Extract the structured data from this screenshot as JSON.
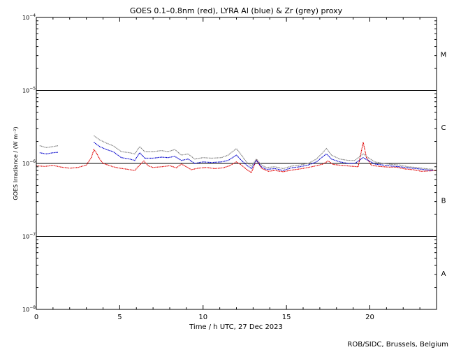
{
  "chart_data": {
    "type": "line",
    "title": "GOES 0.1–0.8nm (red), LYRA Al (blue) & Zr (grey) proxy",
    "xlabel": "Time / h UTC, 27 Dec 2023",
    "ylabel": "GOES Irradiance / (W m⁻²)",
    "xlim": [
      0,
      24
    ],
    "ylim": [
      1e-08,
      0.0001
    ],
    "yscale": "log",
    "x_ticks": [
      0,
      5,
      10,
      15,
      20
    ],
    "x_tick_labels": [
      "0",
      "5",
      "10",
      "15",
      "20"
    ],
    "y_tick_base": "10",
    "y_ticks": [
      {
        "value": 1e-08,
        "exp": "−8"
      },
      {
        "value": 1e-07,
        "exp": "−7"
      },
      {
        "value": 1e-06,
        "exp": "−6"
      },
      {
        "value": 1e-05,
        "exp": "−5"
      },
      {
        "value": 0.0001,
        "exp": "−4"
      }
    ],
    "flare_class_lines": [
      1e-07,
      1e-06,
      1e-05
    ],
    "flare_classes": [
      {
        "label": "A",
        "value": 3.16e-08
      },
      {
        "label": "B",
        "value": 3.16e-07
      },
      {
        "label": "C",
        "value": 3.16e-06
      },
      {
        "label": "M",
        "value": 3.16e-05
      }
    ],
    "series": [
      {
        "name": "GOES 0.1–0.8nm",
        "color": "#e00000",
        "points": [
          [
            0.0,
            9.3e-07
          ],
          [
            0.5,
            9.1e-07
          ],
          [
            1.0,
            9.4e-07
          ],
          [
            1.5,
            8.9e-07
          ],
          [
            2.0,
            8.6e-07
          ],
          [
            2.5,
            8.8e-07
          ],
          [
            3.0,
            9.5e-07
          ],
          [
            3.3,
            1.2e-06
          ],
          [
            3.45,
            1.55e-06
          ],
          [
            3.6,
            1.4e-06
          ],
          [
            3.8,
            1.15e-06
          ],
          [
            4.0,
            1e-06
          ],
          [
            4.3,
            9.5e-07
          ],
          [
            4.6,
            9e-07
          ],
          [
            5.0,
            8.6e-07
          ],
          [
            5.5,
            8.3e-07
          ],
          [
            5.9,
            8e-07
          ],
          [
            6.2,
            9.5e-07
          ],
          [
            6.45,
            1.08e-06
          ],
          [
            6.7,
            9.3e-07
          ],
          [
            7.0,
            8.8e-07
          ],
          [
            7.5,
            9e-07
          ],
          [
            8.0,
            9.3e-07
          ],
          [
            8.4,
            8.7e-07
          ],
          [
            8.7,
            9.8e-07
          ],
          [
            9.0,
            9e-07
          ],
          [
            9.3,
            8.2e-07
          ],
          [
            9.7,
            8.6e-07
          ],
          [
            10.2,
            8.8e-07
          ],
          [
            10.7,
            8.5e-07
          ],
          [
            11.2,
            8.7e-07
          ],
          [
            11.6,
            9.3e-07
          ],
          [
            12.0,
            1.05e-06
          ],
          [
            12.3,
            9.5e-07
          ],
          [
            12.6,
            8.3e-07
          ],
          [
            12.9,
            7.5e-07
          ],
          [
            13.2,
            1.12e-06
          ],
          [
            13.5,
            8.6e-07
          ],
          [
            13.9,
            7.8e-07
          ],
          [
            14.3,
            8e-07
          ],
          [
            14.8,
            7.7e-07
          ],
          [
            15.3,
            8.1e-07
          ],
          [
            15.8,
            8.4e-07
          ],
          [
            16.3,
            8.8e-07
          ],
          [
            16.8,
            9.3e-07
          ],
          [
            17.2,
            9.8e-07
          ],
          [
            17.5,
            1.08e-06
          ],
          [
            17.8,
            9.7e-07
          ],
          [
            18.3,
            9.4e-07
          ],
          [
            18.8,
            9.2e-07
          ],
          [
            19.3,
            9e-07
          ],
          [
            19.6,
            1.95e-06
          ],
          [
            19.8,
            1.2e-06
          ],
          [
            20.1,
            9.4e-07
          ],
          [
            20.6,
            9.1e-07
          ],
          [
            21.1,
            8.9e-07
          ],
          [
            21.6,
            8.9e-07
          ],
          [
            22.1,
            8.4e-07
          ],
          [
            22.6,
            8.2e-07
          ],
          [
            23.1,
            7.8e-07
          ],
          [
            23.6,
            7.9e-07
          ],
          [
            24.0,
            8e-07
          ]
        ]
      },
      {
        "name": "LYRA Al",
        "color": "#0000cc",
        "points": [
          [
            0.2,
            1.4e-06
          ],
          [
            0.6,
            1.35e-06
          ],
          [
            1.0,
            1.4e-06
          ],
          [
            1.3,
            1.42e-06
          ],
          [
            3.45,
            1.95e-06
          ],
          [
            3.8,
            1.7e-06
          ],
          [
            4.2,
            1.55e-06
          ],
          [
            4.6,
            1.45e-06
          ],
          [
            5.1,
            1.2e-06
          ],
          [
            5.6,
            1.15e-06
          ],
          [
            5.9,
            1.1e-06
          ],
          [
            6.2,
            1.4e-06
          ],
          [
            6.5,
            1.18e-06
          ],
          [
            7.0,
            1.18e-06
          ],
          [
            7.5,
            1.22e-06
          ],
          [
            7.9,
            1.2e-06
          ],
          [
            8.3,
            1.25e-06
          ],
          [
            8.7,
            1.1e-06
          ],
          [
            9.1,
            1.15e-06
          ],
          [
            9.5,
            1e-06
          ],
          [
            10.0,
            1.05e-06
          ],
          [
            10.5,
            1.03e-06
          ],
          [
            11.1,
            1.05e-06
          ],
          [
            11.5,
            1.1e-06
          ],
          [
            12.0,
            1.3e-06
          ],
          [
            12.3,
            1.1e-06
          ],
          [
            12.6,
            9.5e-07
          ],
          [
            12.9,
            8.5e-07
          ],
          [
            13.2,
            1.1e-06
          ],
          [
            13.5,
            9e-07
          ],
          [
            13.8,
            8.3e-07
          ],
          [
            14.3,
            8.5e-07
          ],
          [
            14.8,
            8e-07
          ],
          [
            15.3,
            8.7e-07
          ],
          [
            15.8,
            9e-07
          ],
          [
            16.3,
            9.5e-07
          ],
          [
            16.8,
            1.05e-06
          ],
          [
            17.1,
            1.2e-06
          ],
          [
            17.4,
            1.35e-06
          ],
          [
            17.7,
            1.15e-06
          ],
          [
            18.2,
            1.05e-06
          ],
          [
            18.7,
            1e-06
          ],
          [
            19.1,
            1e-06
          ],
          [
            19.6,
            1.2e-06
          ],
          [
            19.9,
            1.1e-06
          ],
          [
            20.3,
            9.8e-07
          ],
          [
            20.8,
            9.5e-07
          ],
          [
            21.3,
            9.2e-07
          ],
          [
            21.8,
            9e-07
          ],
          [
            22.3,
            8.7e-07
          ],
          [
            22.8,
            8.5e-07
          ],
          [
            23.3,
            8.2e-07
          ],
          [
            23.8,
            8e-07
          ]
        ]
      },
      {
        "name": "LYRA Zr",
        "color": "#808080",
        "points": [
          [
            0.2,
            1.75e-06
          ],
          [
            0.6,
            1.65e-06
          ],
          [
            1.0,
            1.7e-06
          ],
          [
            1.3,
            1.75e-06
          ],
          [
            3.45,
            2.4e-06
          ],
          [
            3.8,
            2.1e-06
          ],
          [
            4.2,
            1.9e-06
          ],
          [
            4.6,
            1.75e-06
          ],
          [
            5.1,
            1.45e-06
          ],
          [
            5.6,
            1.4e-06
          ],
          [
            5.9,
            1.35e-06
          ],
          [
            6.2,
            1.7e-06
          ],
          [
            6.5,
            1.45e-06
          ],
          [
            7.0,
            1.45e-06
          ],
          [
            7.5,
            1.5e-06
          ],
          [
            7.9,
            1.45e-06
          ],
          [
            8.3,
            1.55e-06
          ],
          [
            8.7,
            1.3e-06
          ],
          [
            9.1,
            1.35e-06
          ],
          [
            9.5,
            1.15e-06
          ],
          [
            10.0,
            1.2e-06
          ],
          [
            10.5,
            1.18e-06
          ],
          [
            11.1,
            1.2e-06
          ],
          [
            11.5,
            1.3e-06
          ],
          [
            12.0,
            1.6e-06
          ],
          [
            12.3,
            1.3e-06
          ],
          [
            12.6,
            1.05e-06
          ],
          [
            12.9,
            9.2e-07
          ],
          [
            13.2,
            1.15e-06
          ],
          [
            13.5,
            9.5e-07
          ],
          [
            13.8,
            8.8e-07
          ],
          [
            14.3,
            9e-07
          ],
          [
            14.8,
            8.5e-07
          ],
          [
            15.3,
            9.2e-07
          ],
          [
            15.8,
            9.5e-07
          ],
          [
            16.3,
            1e-06
          ],
          [
            16.8,
            1.15e-06
          ],
          [
            17.1,
            1.35e-06
          ],
          [
            17.4,
            1.6e-06
          ],
          [
            17.7,
            1.3e-06
          ],
          [
            18.2,
            1.15e-06
          ],
          [
            18.7,
            1.1e-06
          ],
          [
            19.1,
            1.1e-06
          ],
          [
            19.6,
            1.35e-06
          ],
          [
            19.9,
            1.2e-06
          ],
          [
            20.3,
            1.05e-06
          ],
          [
            20.8,
            1e-06
          ],
          [
            21.3,
            9.7e-07
          ],
          [
            21.8,
            9.5e-07
          ],
          [
            22.3,
            9e-07
          ],
          [
            22.8,
            8.8e-07
          ],
          [
            23.3,
            8.5e-07
          ],
          [
            23.8,
            8.3e-07
          ]
        ]
      }
    ]
  },
  "footer": {
    "credit": "ROB/SIDC, Brussels, Belgium"
  }
}
